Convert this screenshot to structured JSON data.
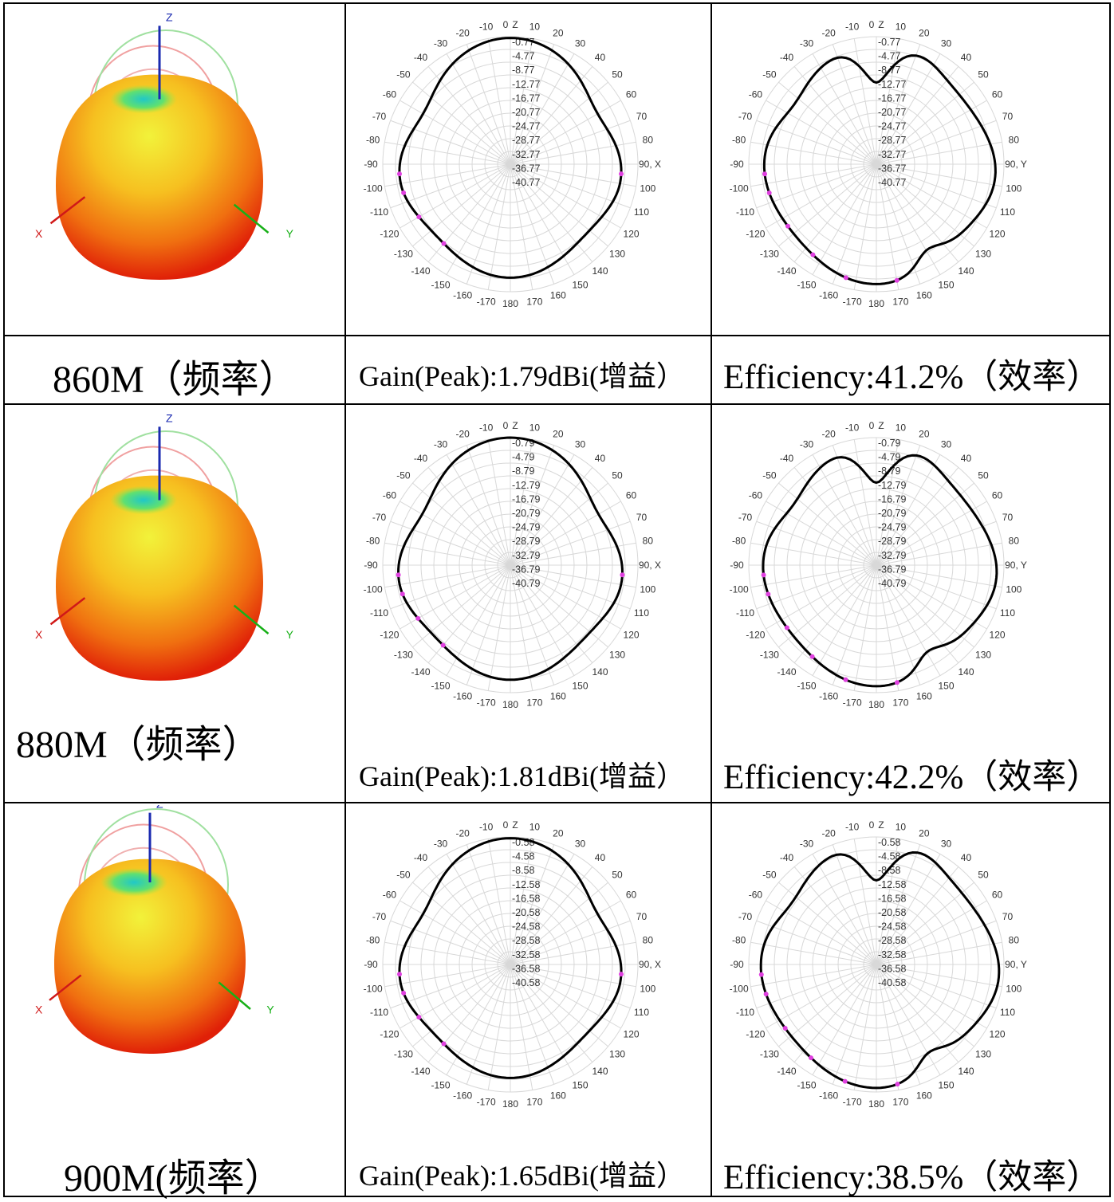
{
  "rows": [
    {
      "freq_caption": "860M（频率）",
      "gain_caption": "Gain(Peak):1.79dBi(增益）",
      "eff_caption": "Efficiency:41.2%（效率）",
      "gain_polar": {
        "axis_side_label": "90, X",
        "ring_labels": [
          "-0.77",
          "-4.77",
          "-8.77",
          "-12.77",
          "-16.77",
          "-20.77",
          "-24.77",
          "-28.77",
          "-32.77",
          "-36.77",
          "-40.77"
        ]
      },
      "eff_polar": {
        "axis_side_label": "90, Y",
        "ring_labels": [
          "-0.77",
          "-4.77",
          "-8.77",
          "-12.77",
          "-16.77",
          "-20.77",
          "-24.77",
          "-28.77",
          "-32.77",
          "-36.77",
          "-40.77"
        ]
      }
    },
    {
      "freq_caption": "880M（频率）",
      "gain_caption": "Gain(Peak):1.81dBi(增益）",
      "eff_caption": "Efficiency:42.2%（效率）",
      "gain_polar": {
        "axis_side_label": "90, X",
        "ring_labels": [
          "-0.79",
          "-4.79",
          "-8.79",
          "-12.79",
          "-16.79",
          "-20.79",
          "-24.79",
          "-28.79",
          "-32.79",
          "-36.79",
          "-40.79"
        ]
      },
      "eff_polar": {
        "axis_side_label": "90, Y",
        "ring_labels": [
          "-0.79",
          "-4.79",
          "-8.79",
          "-12.79",
          "-16.79",
          "-20.79",
          "-24.79",
          "-28.79",
          "-32.79",
          "-36.79",
          "-40.79"
        ]
      }
    },
    {
      "freq_caption": "900M(频率）",
      "gain_caption": "Gain(Peak):1.65dBi(增益）",
      "eff_caption": "Efficiency:38.5%（效率）",
      "gain_polar": {
        "axis_side_label": "90, X",
        "ring_labels": [
          "-0.58",
          "-4.58",
          "-8.58",
          "-12.58",
          "-16.58",
          "-20.58",
          "-24.58",
          "-28.58",
          "-32.58",
          "-36.58",
          "-40.58"
        ]
      },
      "eff_polar": {
        "axis_side_label": "90, Y",
        "ring_labels": [
          "-0.58",
          "-4.58",
          "-8.58",
          "-12.58",
          "-16.58",
          "-20.58",
          "-24.58",
          "-28.58",
          "-32.58",
          "-36.58",
          "-40.58"
        ]
      }
    }
  ],
  "axis_labels_3d": {
    "x": "X",
    "y": "Y",
    "z": "Z"
  },
  "angle_labels": {
    "top_zero": "0",
    "top_z": "Z",
    "left": [
      "-10",
      "-20",
      "-30",
      "-40",
      "-50",
      "-60",
      "-70",
      "-80",
      "-90",
      "-100",
      "-110",
      "-120",
      "-130",
      "-140",
      "-150",
      "-160",
      "-170"
    ],
    "right": [
      "10",
      "20",
      "30",
      "40",
      "50",
      "60",
      "70",
      "80",
      "100",
      "110",
      "120",
      "130",
      "140",
      "150",
      "160",
      "170"
    ],
    "bottom": "180"
  },
  "colors": {
    "pattern_trace": "#000000",
    "marker": "#e040e0",
    "grid": "#d8d8d8",
    "z_axis": "#1a2ab0",
    "x_axis": "#d01818",
    "y_axis": "#18b018"
  }
}
